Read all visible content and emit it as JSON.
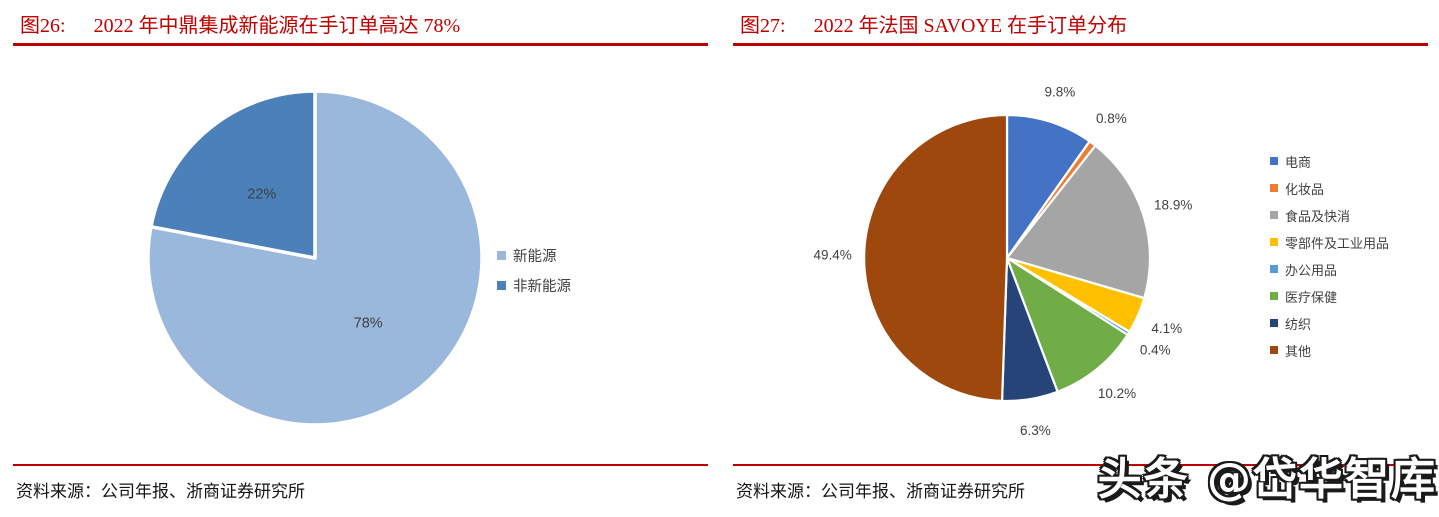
{
  "watermark": "头条 @岱华智库",
  "colors": {
    "accent_red": "#C00000",
    "label_text": "#404040",
    "source_text": "#141414",
    "background": "#FFFFFF"
  },
  "panels": [
    {
      "fig_label": "图26:",
      "source": "资料来源：公司年报、浙商证券研究所"
    },
    {
      "fig_label": "图27:",
      "source": "资料来源：公司年报、浙商证券研究所"
    }
  ],
  "chart_data": [
    {
      "type": "pie",
      "title": "2022 年中鼎集成新能源在手订单高达 78%",
      "categories": [
        "新能源",
        "非新能源"
      ],
      "values": [
        78,
        22
      ],
      "value_labels": [
        "78%",
        "22%"
      ],
      "colors": [
        "#9AB7DC",
        "#4B80B9"
      ],
      "start_angle_deg": 0,
      "direction": "clockwise",
      "label_placement": "inside",
      "legend_position": "right"
    },
    {
      "type": "pie",
      "title": "2022 年法国 SAVOYE 在手订单分布",
      "categories": [
        "电商",
        "化妆品",
        "食品及快消",
        "零部件及工业用品",
        "办公用品",
        "医疗保健",
        "纺织",
        "其他"
      ],
      "values": [
        9.8,
        0.8,
        18.9,
        4.1,
        0.4,
        10.2,
        6.3,
        49.4
      ],
      "value_labels": [
        "9.8%",
        "0.8%",
        "18.9%",
        "4.1%",
        "0.4%",
        "10.2%",
        "6.3%",
        "49.4%"
      ],
      "colors": [
        "#4472C4",
        "#ED7D31",
        "#A5A5A5",
        "#FFC000",
        "#5B9BD5",
        "#70AD47",
        "#264478",
        "#9E480E"
      ],
      "start_angle_deg": 0,
      "direction": "clockwise",
      "label_placement": "outside",
      "legend_position": "right"
    }
  ]
}
